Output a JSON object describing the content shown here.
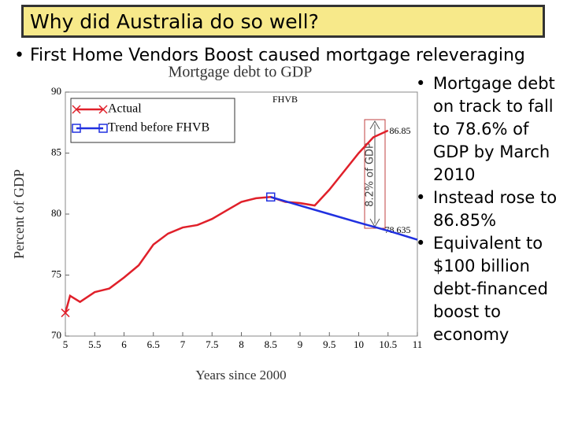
{
  "slide_title": "Why did Australia do so well?",
  "bullets": [
    "First Home Vendors Boost caused mortgage releveraging"
  ],
  "side_bullets": [
    "Mortgage debt on track to fall to 78.6% of GDP by March 2010",
    "Instead rose to 86.85%",
    "Equivalent to $100 billion debt-financed boost to economy"
  ],
  "chart_data": {
    "type": "line",
    "title": "Mortgage debt to GDP",
    "x_label": "Years since 2000",
    "y_label": "Percent of GDP",
    "xlim": [
      5,
      11
    ],
    "ylim": [
      70,
      90
    ],
    "xticks": [
      5,
      5.5,
      6,
      6.5,
      7,
      7.5,
      8,
      8.5,
      9,
      9.5,
      10,
      10.5,
      11
    ],
    "yticks": [
      70,
      75,
      80,
      85,
      90
    ],
    "legend": "upper left",
    "series": [
      {
        "name": "Actual",
        "color": "#e0202a",
        "marker": "x",
        "x": [
          5.0,
          5.08,
          5.25,
          5.5,
          5.75,
          6.0,
          6.25,
          6.5,
          6.75,
          7.0,
          7.25,
          7.5,
          7.75,
          8.0,
          8.25,
          8.5,
          8.75,
          9.0,
          9.25,
          9.5,
          9.75,
          10.0,
          10.25,
          10.5
        ],
        "values": [
          71.9,
          73.3,
          72.8,
          73.6,
          73.9,
          74.8,
          75.8,
          77.5,
          78.4,
          78.9,
          79.1,
          79.6,
          80.3,
          81.0,
          81.3,
          81.4,
          81.0,
          80.9,
          80.7,
          82.0,
          83.5,
          85.0,
          86.3,
          86.85
        ]
      },
      {
        "name": "Trend before FHVB",
        "color": "#2030e0",
        "marker": "s",
        "x": [
          8.5,
          9.0,
          9.5,
          10.0,
          10.5,
          11.0
        ],
        "values": [
          81.4,
          80.7,
          80.0,
          79.3,
          78.635,
          77.9
        ]
      }
    ],
    "annotations": [
      "FHVB",
      "86.85",
      "78.635",
      "8.2% of GDP"
    ]
  }
}
